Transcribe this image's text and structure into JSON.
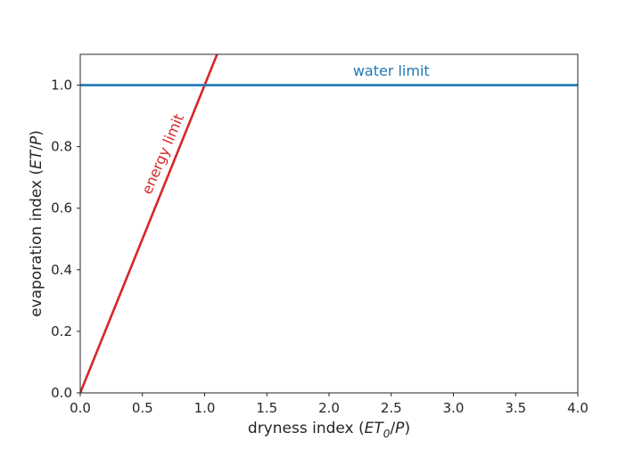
{
  "chart_data": {
    "type": "line",
    "xlabel": {
      "prefix": "dryness index (",
      "var": "ET",
      "sub": "0",
      "mid": "/",
      "var2": "P",
      "suffix": ")"
    },
    "ylabel": {
      "prefix": "evaporation index (",
      "var": "ET",
      "mid": "/",
      "var2": "P",
      "suffix": ")"
    },
    "xlim": [
      0,
      4
    ],
    "ylim": [
      0,
      1.1
    ],
    "xticks": [
      0,
      0.5,
      1,
      1.5,
      2,
      2.5,
      3,
      3.5,
      4
    ],
    "xtick_labels": [
      "0.0",
      "0.5",
      "1.0",
      "1.5",
      "2.0",
      "2.5",
      "3.0",
      "3.5",
      "4.0"
    ],
    "yticks": [
      0,
      0.2,
      0.4,
      0.6,
      0.8,
      1.0
    ],
    "ytick_labels": [
      "0.0",
      "0.2",
      "0.4",
      "0.6",
      "0.8",
      "1.0"
    ],
    "grid": false,
    "series": [
      {
        "x": [
          0,
          1.1
        ],
        "y": [
          0,
          1.1
        ],
        "color": "#d62728"
      },
      {
        "x": [
          0,
          4
        ],
        "y": [
          1.0,
          1.0
        ],
        "color": "#1f77b4"
      }
    ],
    "annotations": [
      {
        "text": "water limit",
        "x": 2.5,
        "y": 1.03,
        "color": "#1f77b4",
        "rotation": 0
      },
      {
        "text": "energy limit",
        "x": 0.7,
        "y": 0.77,
        "color": "#d62728",
        "rotation": -67
      }
    ]
  }
}
